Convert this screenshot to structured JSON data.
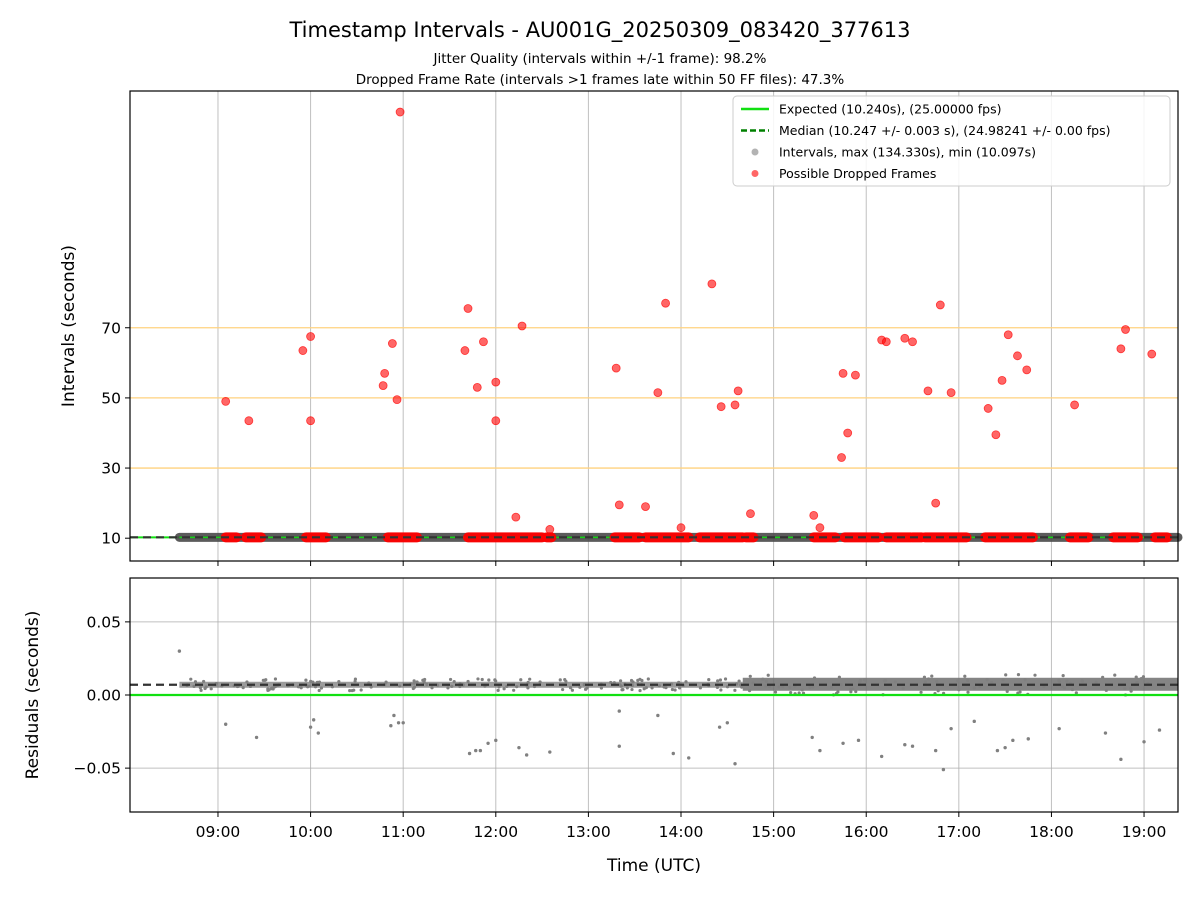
{
  "chart_data": {
    "type": "scatter",
    "title": "Timestamp Intervals - AU001G_20250309_083420_377613",
    "subtitle_1": "Jitter Quality (intervals within +/-1 frame): 98.2%",
    "subtitle_2": "Dropped Frame Rate (intervals >1 frames late within 50 FF files): 47.3%",
    "xlabel": "Time (UTC)",
    "x_ticks": [
      "09:00",
      "10:00",
      "11:00",
      "12:00",
      "13:00",
      "14:00",
      "15:00",
      "16:00",
      "17:00",
      "18:00",
      "19:00"
    ],
    "x_range": [
      "08:03",
      "19:22"
    ],
    "top_panel": {
      "ylabel": "Intervals (seconds)",
      "y_ticks": [
        "10",
        "30",
        "50",
        "70"
      ],
      "ylim": [
        3.5,
        137.5
      ],
      "reference_lines": [
        30,
        50,
        70
      ],
      "reference_color": "#ffd27f",
      "expected_value": 10.24,
      "median_value": 10.247,
      "legend_position": "upper-right",
      "legend": {
        "expected": "Expected (10.240s), (25.00000 fps)",
        "median": "Median (10.247 +/- 0.003 s), (24.98241 +/- 0.00 fps)",
        "intervals": "Intervals, max (134.330s), min (10.097s)",
        "dropped": "Possible Dropped Frames"
      },
      "dropped_frames": [
        [
          "09:05",
          49
        ],
        [
          "09:20",
          43.5
        ],
        [
          "09:55",
          63.5
        ],
        [
          "10:00",
          43.5
        ],
        [
          "10:00",
          67.5
        ],
        [
          "10:47",
          53.5
        ],
        [
          "10:48",
          57
        ],
        [
          "10:53",
          65.5
        ],
        [
          "10:56",
          49.5
        ],
        [
          "10:58",
          131.5
        ],
        [
          "11:40",
          63.5
        ],
        [
          "11:42",
          75.5
        ],
        [
          "11:48",
          53
        ],
        [
          "11:52",
          66
        ],
        [
          "12:00",
          54.5
        ],
        [
          "12:00",
          43.5
        ],
        [
          "12:13",
          16
        ],
        [
          "12:17",
          70.5
        ],
        [
          "12:35",
          12.5
        ],
        [
          "13:18",
          58.5
        ],
        [
          "13:20",
          19.5
        ],
        [
          "13:37",
          19
        ],
        [
          "13:45",
          51.5
        ],
        [
          "13:50",
          77
        ],
        [
          "14:00",
          13
        ],
        [
          "14:20",
          82.5
        ],
        [
          "14:26",
          47.5
        ],
        [
          "14:35",
          48
        ],
        [
          "14:37",
          52
        ],
        [
          "14:45",
          17
        ],
        [
          "15:26",
          16.5
        ],
        [
          "15:30",
          13
        ],
        [
          "15:44",
          33
        ],
        [
          "15:45",
          57
        ],
        [
          "15:48",
          40
        ],
        [
          "15:53",
          56.5
        ],
        [
          "16:10",
          66.5
        ],
        [
          "16:13",
          66
        ],
        [
          "16:25",
          67
        ],
        [
          "16:30",
          66
        ],
        [
          "16:40",
          52
        ],
        [
          "16:45",
          20
        ],
        [
          "16:48",
          76.5
        ],
        [
          "16:55",
          51.5
        ],
        [
          "17:19",
          47
        ],
        [
          "17:24",
          39.5
        ],
        [
          "17:28",
          55
        ],
        [
          "17:32",
          68
        ],
        [
          "17:38",
          62
        ],
        [
          "17:44",
          58
        ],
        [
          "18:15",
          48
        ],
        [
          "18:45",
          64
        ],
        [
          "18:48",
          69.5
        ],
        [
          "19:05",
          62.5
        ]
      ],
      "dropped_segments": [
        [
          "09:05",
          "09:12"
        ],
        [
          "09:18",
          "09:28"
        ],
        [
          "09:57",
          "10:10"
        ],
        [
          "10:50",
          "11:09"
        ],
        [
          "11:42",
          "12:30"
        ],
        [
          "12:33",
          "12:36"
        ],
        [
          "13:17",
          "13:33"
        ],
        [
          "13:37",
          "14:05"
        ],
        [
          "14:12",
          "14:40"
        ],
        [
          "14:42",
          "14:47"
        ],
        [
          "15:26",
          "15:40"
        ],
        [
          "15:46",
          "16:08"
        ],
        [
          "16:13",
          "16:29"
        ],
        [
          "16:30",
          "16:36"
        ],
        [
          "16:38",
          "17:05"
        ],
        [
          "17:17",
          "17:48"
        ],
        [
          "18:12",
          "18:24"
        ],
        [
          "18:40",
          "18:56"
        ],
        [
          "19:07",
          "19:15"
        ]
      ]
    },
    "bottom_panel": {
      "ylabel": "Residuals (seconds)",
      "y_ticks": [
        "0.05",
        "0.00",
        "−0.05"
      ],
      "y_tick_values": [
        0.05,
        0,
        -0.05
      ],
      "ylim": [
        -0.08,
        0.08
      ],
      "expected_residual": 0.0,
      "median_residual": 0.007,
      "outliers": [
        [
          "08:35",
          0.03
        ],
        [
          "09:05",
          -0.02
        ],
        [
          "09:25",
          -0.029
        ],
        [
          "10:00",
          -0.022
        ],
        [
          "10:02",
          -0.017
        ],
        [
          "10:05",
          -0.026
        ],
        [
          "10:52",
          -0.021
        ],
        [
          "10:54",
          -0.014
        ],
        [
          "10:57",
          -0.019
        ],
        [
          "11:00",
          -0.019
        ],
        [
          "11:43",
          -0.04
        ],
        [
          "11:47",
          -0.038
        ],
        [
          "11:50",
          -0.038
        ],
        [
          "11:55",
          -0.033
        ],
        [
          "12:00",
          -0.031
        ],
        [
          "12:15",
          -0.036
        ],
        [
          "12:20",
          -0.041
        ],
        [
          "12:35",
          -0.039
        ],
        [
          "13:20",
          -0.011
        ],
        [
          "13:20",
          -0.035
        ],
        [
          "13:45",
          -0.014
        ],
        [
          "13:55",
          -0.04
        ],
        [
          "14:05",
          -0.043
        ],
        [
          "14:25",
          -0.022
        ],
        [
          "14:30",
          -0.019
        ],
        [
          "14:35",
          -0.047
        ],
        [
          "15:25",
          -0.029
        ],
        [
          "15:30",
          -0.038
        ],
        [
          "15:45",
          -0.033
        ],
        [
          "15:55",
          -0.031
        ],
        [
          "16:10",
          -0.042
        ],
        [
          "16:25",
          -0.034
        ],
        [
          "16:30",
          -0.035
        ],
        [
          "16:45",
          -0.038
        ],
        [
          "16:50",
          -0.051
        ],
        [
          "16:55",
          -0.023
        ],
        [
          "17:10",
          -0.018
        ],
        [
          "17:25",
          -0.038
        ],
        [
          "17:30",
          -0.036
        ],
        [
          "17:35",
          -0.031
        ],
        [
          "17:45",
          -0.03
        ],
        [
          "18:05",
          -0.023
        ],
        [
          "18:35",
          -0.026
        ],
        [
          "18:45",
          -0.044
        ],
        [
          "19:00",
          -0.032
        ],
        [
          "19:10",
          -0.024
        ]
      ]
    }
  },
  "colors": {
    "expected": "#11e011",
    "median": "#008000",
    "intervals": "#808080",
    "dropped": "#ff0000",
    "median_thick": "#333333"
  }
}
